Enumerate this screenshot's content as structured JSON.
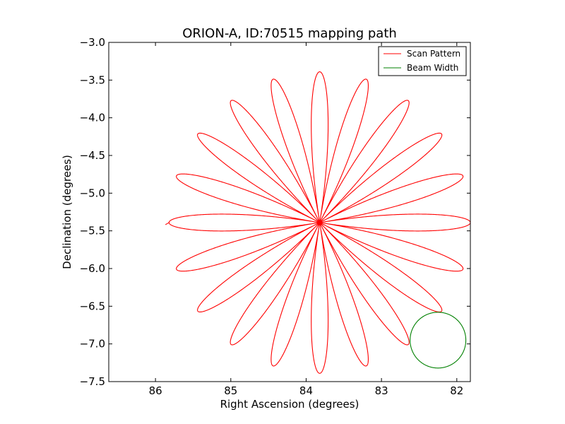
{
  "chart_data": {
    "type": "line",
    "title": "ORION-A, ID:70515 mapping path",
    "xlabel": "Right Ascension (degrees)",
    "ylabel": "Declination (degrees)",
    "xlim": [
      86.62,
      81.82
    ],
    "ylim": [
      -7.5,
      -3.0
    ],
    "x_inverted": true,
    "x_ticks": [
      86,
      85,
      84,
      83,
      82
    ],
    "x_tick_labels": [
      "86",
      "85",
      "84",
      "83",
      "82"
    ],
    "y_ticks": [
      -3.0,
      -3.5,
      -4.0,
      -4.5,
      -5.0,
      -5.5,
      -6.0,
      -6.5,
      -7.0,
      -7.5
    ],
    "y_tick_labels": [
      "−3.0",
      "−3.5",
      "−4.0",
      "−4.5",
      "−5.0",
      "−5.5",
      "−6.0",
      "−6.5",
      "−7.0",
      "−7.5"
    ],
    "grid": false,
    "legend_position": "top-right",
    "series": [
      {
        "name": "Scan Pattern",
        "color": "#ff0000",
        "shape": "rose",
        "center": [
          83.82,
          -5.39
        ],
        "petals": 20,
        "radius": 2.0,
        "start": [
          85.84,
          -5.39
        ]
      },
      {
        "name": "Beam Width",
        "color": "#008000",
        "shape": "circle",
        "center": [
          82.25,
          -6.95
        ],
        "radius": 0.37
      }
    ]
  }
}
